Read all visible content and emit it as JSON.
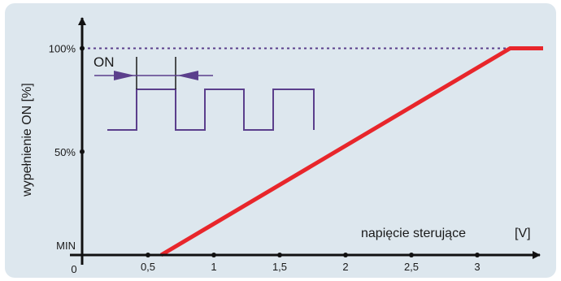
{
  "colors": {
    "background": "#dde7ee",
    "axis": "#111111",
    "series": "#e8262b",
    "reference": "#5b3f8c",
    "pulse": "#5b3f8c"
  },
  "chart_data": {
    "type": "line",
    "xlabel": "napięcie sterujące",
    "xunit": "[V]",
    "ylabel": "wypełnienie ON  [%]",
    "xlim": [
      0,
      3.5
    ],
    "ylim": [
      0,
      100
    ],
    "x_ticks": [
      {
        "value": 0,
        "label": "0"
      },
      {
        "value": 0.5,
        "label": "0,5"
      },
      {
        "value": 1,
        "label": "1"
      },
      {
        "value": 1.5,
        "label": "1,5"
      },
      {
        "value": 2,
        "label": "2"
      },
      {
        "value": 2.5,
        "label": "2,5"
      },
      {
        "value": 3,
        "label": "3"
      }
    ],
    "y_ticks": [
      {
        "value": 0,
        "label": "MIN"
      },
      {
        "value": 50,
        "label": "50%"
      },
      {
        "value": 100,
        "label": "100%"
      }
    ],
    "series": [
      {
        "x": [
          0.6,
          3.25,
          3.5
        ],
        "y": [
          0,
          100,
          100
        ]
      }
    ],
    "reference_lines": [
      {
        "axis": "y",
        "value": 100,
        "style": "dotted"
      }
    ],
    "inset": {
      "label": "ON",
      "pulses": 3
    },
    "grid": false
  }
}
